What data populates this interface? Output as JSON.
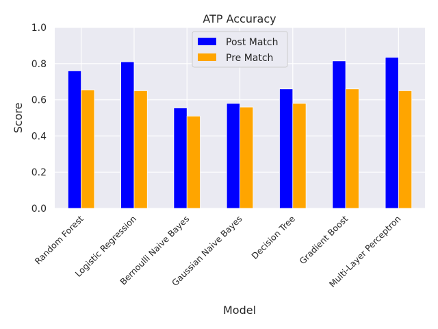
{
  "chart_data": {
    "type": "bar",
    "title": "ATP Accuracy",
    "xlabel": "Model",
    "ylabel": "Score",
    "ylim": [
      0,
      1.0
    ],
    "yticks": [
      "0.0",
      "0.2",
      "0.4",
      "0.6",
      "0.8",
      "1.0"
    ],
    "categories": [
      "Random Forest",
      "Logistic Regression",
      "Bernoulli Naive Bayes",
      "Gaussian Naive Bayes",
      "Decision Tree",
      "Gradient Boost",
      "Multi-Layer Perceptron"
    ],
    "series": [
      {
        "name": "Post Match",
        "color": "#0000ff",
        "values": [
          0.76,
          0.81,
          0.555,
          0.58,
          0.66,
          0.815,
          0.835
        ]
      },
      {
        "name": "Pre Match",
        "color": "#ffa500",
        "values": [
          0.655,
          0.65,
          0.51,
          0.56,
          0.58,
          0.66,
          0.65
        ]
      }
    ],
    "grid": true,
    "legend_position": "top-center",
    "background_color": "#eaeaf2"
  }
}
